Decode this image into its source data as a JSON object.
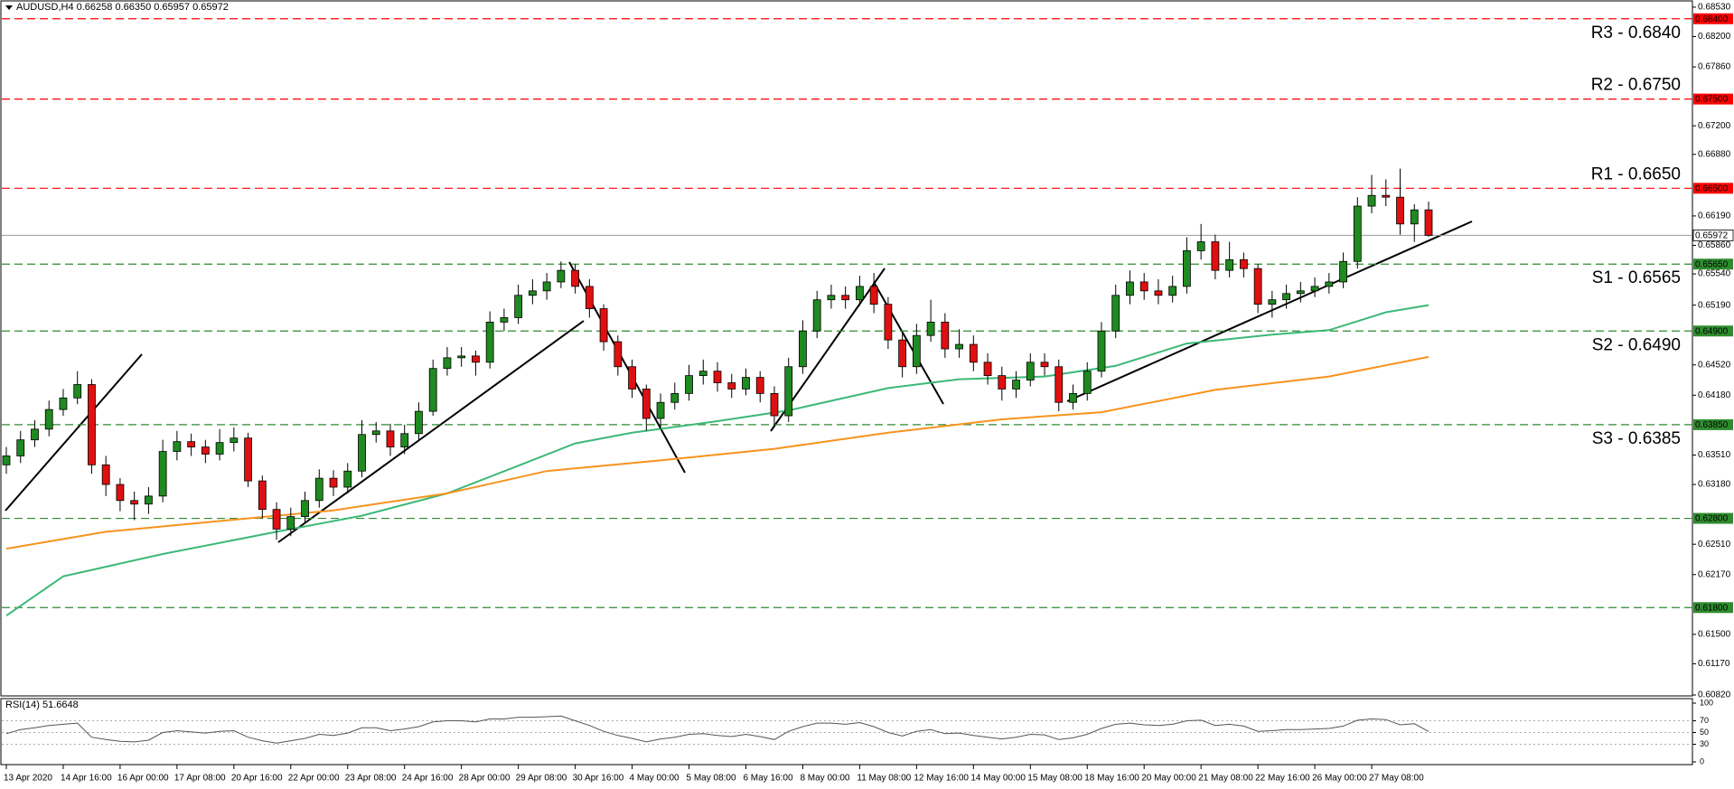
{
  "chart_data": [
    {
      "type": "candlestick",
      "title": "AUDUSD,H4  0.66258 0.66350 0.65957 0.65972",
      "categories": [
        "13 Apr 2020",
        null,
        null,
        null,
        "14 Apr 16:00",
        null,
        null,
        null,
        "16 Apr 00:00",
        null,
        null,
        null,
        "17 Apr 08:00",
        null,
        null,
        null,
        "20 Apr 16:00",
        null,
        null,
        null,
        "22 Apr 00:00",
        null,
        null,
        null,
        "23 Apr 08:00",
        null,
        null,
        null,
        "24 Apr 16:00",
        null,
        null,
        null,
        "28 Apr 00:00",
        null,
        null,
        null,
        "29 Apr 08:00",
        null,
        null,
        null,
        "30 Apr 16:00",
        null,
        null,
        null,
        "4 May 00:00",
        null,
        null,
        null,
        "5 May 08:00",
        null,
        null,
        null,
        "6 May 16:00",
        null,
        null,
        null,
        "8 May 00:00",
        null,
        null,
        null,
        "11 May 08:00",
        null,
        null,
        null,
        "12 May 16:00",
        null,
        null,
        null,
        "14 May 00:00",
        null,
        null,
        null,
        "15 May 08:00",
        null,
        null,
        null,
        "18 May 16:00",
        null,
        null,
        null,
        "20 May 00:00",
        null,
        null,
        null,
        "21 May 08:00",
        null,
        null,
        null,
        "22 May 16:00",
        null,
        null,
        null,
        "26 May 00:00",
        null,
        null,
        null,
        "27 May 08:00",
        null,
        null,
        null,
        null
      ],
      "open": [
        0.634,
        0.635,
        0.6368,
        0.638,
        0.6402,
        0.6415,
        0.643,
        0.634,
        0.6318,
        0.63,
        0.6296,
        0.6305,
        0.6355,
        0.6366,
        0.636,
        0.6352,
        0.6365,
        0.637,
        0.6322,
        0.629,
        0.6268,
        0.6282,
        0.63,
        0.6325,
        0.6315,
        0.6333,
        0.6374,
        0.6378,
        0.636,
        0.6375,
        0.64,
        0.6448,
        0.646,
        0.6462,
        0.6455,
        0.65,
        0.6505,
        0.653,
        0.6535,
        0.6545,
        0.6558,
        0.654,
        0.6515,
        0.6478,
        0.645,
        0.6425,
        0.6392,
        0.641,
        0.642,
        0.644,
        0.6445,
        0.6432,
        0.6425,
        0.6438,
        0.642,
        0.6395,
        0.645,
        0.649,
        0.6525,
        0.653,
        0.6525,
        0.654,
        0.652,
        0.648,
        0.645,
        0.6485,
        0.65,
        0.647,
        0.6475,
        0.6455,
        0.644,
        0.6425,
        0.6435,
        0.6455,
        0.645,
        0.641,
        0.642,
        0.6445,
        0.649,
        0.653,
        0.6545,
        0.6535,
        0.653,
        0.654,
        0.658,
        0.659,
        0.6558,
        0.657,
        0.656,
        0.652,
        0.6525,
        0.6532,
        0.6535,
        0.654,
        0.6545,
        0.6568,
        0.663,
        0.6642,
        0.664,
        0.661,
        0.66258
      ],
      "high": [
        0.636,
        0.6378,
        0.639,
        0.6412,
        0.6425,
        0.6445,
        0.6436,
        0.635,
        0.6325,
        0.631,
        0.6315,
        0.6368,
        0.6378,
        0.6375,
        0.6368,
        0.638,
        0.6382,
        0.6376,
        0.6328,
        0.6298,
        0.6292,
        0.631,
        0.6335,
        0.6334,
        0.6342,
        0.639,
        0.6388,
        0.6386,
        0.6385,
        0.641,
        0.6458,
        0.6472,
        0.6472,
        0.6468,
        0.6512,
        0.6515,
        0.6542,
        0.6548,
        0.6555,
        0.6568,
        0.6565,
        0.6548,
        0.652,
        0.6485,
        0.6458,
        0.643,
        0.642,
        0.6432,
        0.6452,
        0.6458,
        0.6455,
        0.6442,
        0.6448,
        0.6445,
        0.6428,
        0.646,
        0.6502,
        0.6535,
        0.6542,
        0.654,
        0.6552,
        0.6555,
        0.6528,
        0.6488,
        0.6498,
        0.6525,
        0.651,
        0.6492,
        0.6485,
        0.6465,
        0.645,
        0.6445,
        0.6465,
        0.6465,
        0.6458,
        0.643,
        0.6455,
        0.65,
        0.6542,
        0.6558,
        0.6555,
        0.6548,
        0.6552,
        0.6595,
        0.661,
        0.6598,
        0.659,
        0.6578,
        0.6565,
        0.6535,
        0.6542,
        0.6545,
        0.655,
        0.6555,
        0.6578,
        0.664,
        0.6665,
        0.666,
        0.6672,
        0.6632,
        0.6635
      ],
      "low": [
        0.633,
        0.6342,
        0.636,
        0.6372,
        0.6395,
        0.6408,
        0.633,
        0.6305,
        0.6288,
        0.6278,
        0.6285,
        0.6298,
        0.6345,
        0.635,
        0.6342,
        0.6345,
        0.6355,
        0.6315,
        0.628,
        0.6256,
        0.626,
        0.6275,
        0.6292,
        0.6305,
        0.6308,
        0.6326,
        0.6365,
        0.635,
        0.6352,
        0.6368,
        0.6395,
        0.644,
        0.645,
        0.644,
        0.6448,
        0.649,
        0.6498,
        0.652,
        0.6525,
        0.6538,
        0.6532,
        0.6505,
        0.6468,
        0.644,
        0.6415,
        0.6378,
        0.638,
        0.6402,
        0.6412,
        0.643,
        0.6422,
        0.6415,
        0.6418,
        0.641,
        0.6382,
        0.6388,
        0.6442,
        0.6482,
        0.6515,
        0.6515,
        0.6518,
        0.651,
        0.647,
        0.6438,
        0.6442,
        0.6478,
        0.646,
        0.646,
        0.6445,
        0.643,
        0.6412,
        0.6415,
        0.6428,
        0.644,
        0.64,
        0.6402,
        0.6412,
        0.6438,
        0.6482,
        0.652,
        0.6525,
        0.652,
        0.6522,
        0.6532,
        0.657,
        0.6548,
        0.655,
        0.655,
        0.651,
        0.6505,
        0.6515,
        0.6522,
        0.6528,
        0.6532,
        0.6538,
        0.656,
        0.6622,
        0.663,
        0.6598,
        0.659,
        0.65957
      ],
      "close": [
        0.635,
        0.6368,
        0.638,
        0.6402,
        0.6415,
        0.643,
        0.634,
        0.6318,
        0.63,
        0.6296,
        0.6305,
        0.6355,
        0.6366,
        0.636,
        0.6352,
        0.6365,
        0.637,
        0.6322,
        0.629,
        0.6268,
        0.6282,
        0.63,
        0.6325,
        0.6315,
        0.6333,
        0.6374,
        0.6378,
        0.636,
        0.6375,
        0.64,
        0.6448,
        0.646,
        0.6462,
        0.6455,
        0.65,
        0.6505,
        0.653,
        0.6535,
        0.6545,
        0.6558,
        0.654,
        0.6515,
        0.6478,
        0.645,
        0.6425,
        0.6392,
        0.641,
        0.642,
        0.644,
        0.6445,
        0.6432,
        0.6425,
        0.6438,
        0.642,
        0.6395,
        0.645,
        0.649,
        0.6525,
        0.653,
        0.6525,
        0.654,
        0.652,
        0.648,
        0.645,
        0.6485,
        0.65,
        0.647,
        0.6475,
        0.6455,
        0.644,
        0.6425,
        0.6435,
        0.6455,
        0.645,
        0.641,
        0.642,
        0.6445,
        0.649,
        0.653,
        0.6545,
        0.6535,
        0.653,
        0.654,
        0.658,
        0.659,
        0.6558,
        0.657,
        0.656,
        0.652,
        0.6525,
        0.6532,
        0.6535,
        0.654,
        0.6545,
        0.6568,
        0.663,
        0.6642,
        0.664,
        0.661,
        0.66258,
        0.65972
      ],
      "up_color": "#1f8a1f",
      "down_color": "#e01010",
      "series": [
        {
          "color": "#3cb878",
          "x": [
            0,
            4,
            11,
            19,
            25,
            31,
            36,
            40,
            44,
            50,
            55,
            62,
            67,
            73,
            78,
            83,
            89,
            93,
            97,
            100
          ],
          "values": [
            0.6171,
            0.6215,
            0.624,
            0.6265,
            0.6283,
            0.6308,
            0.6339,
            0.6364,
            0.6376,
            0.6389,
            0.6401,
            0.6426,
            0.6436,
            0.6439,
            0.6451,
            0.6476,
            0.6486,
            0.6491,
            0.6511,
            0.6519
          ]
        },
        {
          "color": "#f7931e",
          "x": [
            0,
            7,
            15,
            23,
            31,
            38,
            46,
            54,
            62,
            70,
            77,
            85,
            93,
            100
          ],
          "values": [
            0.6246,
            0.6265,
            0.6277,
            0.6289,
            0.6308,
            0.6333,
            0.6345,
            0.6358,
            0.6376,
            0.6391,
            0.6399,
            0.6424,
            0.6439,
            0.6461
          ]
        }
      ],
      "levels": [
        {
          "name": "R3 - 0.6840",
          "value": 0.684,
          "label": "0.68400",
          "color": "#ff0000"
        },
        {
          "name": "R2 - 0.6750",
          "value": 0.675,
          "label": "0.67500",
          "color": "#ff0000"
        },
        {
          "name": "R1 - 0.6650",
          "value": 0.665,
          "label": "0.66500",
          "color": "#ff0000"
        },
        {
          "name": "S1 - 0.6565",
          "value": 0.6565,
          "label": "0.65650",
          "color": "#2e8b2e"
        },
        {
          "name": "S2 - 0.6490",
          "value": 0.649,
          "label": "0.64900",
          "color": "#2e8b2e"
        },
        {
          "name": "S3 - 0.6385",
          "value": 0.6385,
          "label": "0.63850",
          "color": "#2e8b2e"
        },
        {
          "value": 0.628,
          "label": "0.62800",
          "color": "#2e8b2e"
        },
        {
          "value": 0.618,
          "label": "0.61800",
          "color": "#2e8b2e"
        }
      ],
      "last_price": {
        "value": 0.65972,
        "label": "0.65972"
      },
      "ylim": [
        0.6081,
        0.6859
      ],
      "yticks": [
        {
          "value": 0.6853,
          "label": "0.68530"
        },
        {
          "value": 0.682,
          "label": "0.68200"
        },
        {
          "value": 0.6786,
          "label": "0.67860"
        },
        {
          "value": 0.672,
          "label": "0.67200"
        },
        {
          "value": 0.6688,
          "label": "0.66880"
        },
        {
          "value": 0.6619,
          "label": "0.66190"
        },
        {
          "value": 0.6586,
          "label": "0.65860"
        },
        {
          "value": 0.6554,
          "label": "0.65540"
        },
        {
          "value": 0.6519,
          "label": "0.65190"
        },
        {
          "value": 0.6452,
          "label": "0.64520"
        },
        {
          "value": 0.6418,
          "label": "0.64180"
        },
        {
          "value": 0.6351,
          "label": "0.63510"
        },
        {
          "value": 0.6318,
          "label": "0.63180"
        },
        {
          "value": 0.6251,
          "label": "0.62510"
        },
        {
          "value": 0.6217,
          "label": "0.62170"
        },
        {
          "value": 0.615,
          "label": "0.61500"
        },
        {
          "value": 0.6117,
          "label": "0.61170"
        },
        {
          "value": 0.6082,
          "label": "0.60820"
        }
      ]
    },
    {
      "type": "line",
      "title": "RSI(14) 51.6648",
      "color": "#555555",
      "values": [
        48,
        55,
        58,
        62,
        64,
        66,
        42,
        38,
        35,
        34,
        37,
        50,
        53,
        51,
        49,
        52,
        53,
        42,
        36,
        32,
        36,
        40,
        47,
        45,
        49,
        58,
        58,
        53,
        56,
        60,
        68,
        70,
        70,
        68,
        73,
        73,
        76,
        76,
        77,
        78,
        70,
        62,
        52,
        45,
        40,
        34,
        39,
        42,
        47,
        48,
        45,
        43,
        47,
        43,
        38,
        52,
        60,
        66,
        66,
        64,
        67,
        60,
        50,
        44,
        52,
        55,
        48,
        49,
        45,
        42,
        39,
        42,
        47,
        46,
        38,
        41,
        47,
        57,
        64,
        66,
        63,
        62,
        64,
        70,
        71,
        62,
        64,
        61,
        52,
        53,
        55,
        55,
        56,
        57,
        61,
        71,
        73,
        72,
        63,
        65,
        51.6648
      ],
      "ylim": [
        0,
        100
      ],
      "yticks": [
        0,
        30,
        50,
        70,
        100
      ]
    }
  ]
}
